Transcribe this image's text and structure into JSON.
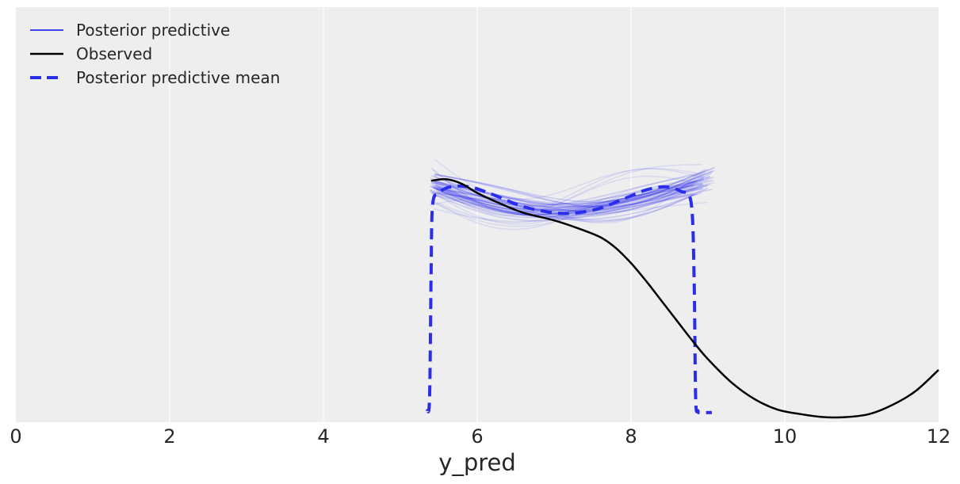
{
  "chart_data": {
    "type": "line",
    "title": "",
    "xlabel": "y_pred",
    "ylabel": "",
    "xlim": [
      0,
      12
    ],
    "ylim": [
      0,
      1
    ],
    "grid": true,
    "legend_position": "upper left",
    "x_ticks": [
      "0",
      "2",
      "4",
      "6",
      "8",
      "10",
      "12"
    ],
    "background_color": "#eeeeee",
    "legend": [
      {
        "label": "Posterior predictive",
        "color": "#2a2eec",
        "style": "solid-thin"
      },
      {
        "label": "Observed",
        "color": "#000000",
        "style": "solid"
      },
      {
        "label": "Posterior predictive mean",
        "color": "#2a2eec",
        "style": "dashed"
      }
    ],
    "series": [
      {
        "name": "Observed",
        "color": "#000000",
        "x": [
          5.4,
          5.6,
          5.8,
          6.0,
          6.3,
          6.6,
          7.0,
          7.3,
          7.6,
          7.8,
          8.0,
          8.2,
          8.4,
          8.6,
          8.8,
          9.0,
          9.3,
          9.6,
          9.9,
          10.2,
          10.5,
          10.8,
          11.1,
          11.4,
          11.7,
          12.0
        ],
        "y": [
          0.81,
          0.815,
          0.8,
          0.77,
          0.735,
          0.705,
          0.68,
          0.655,
          0.625,
          0.59,
          0.54,
          0.48,
          0.415,
          0.35,
          0.285,
          0.225,
          0.15,
          0.095,
          0.06,
          0.045,
          0.035,
          0.035,
          0.045,
          0.075,
          0.12,
          0.19
        ]
      },
      {
        "name": "Posterior predictive mean",
        "color": "#2a2eec",
        "x": [
          5.35,
          5.38,
          5.4,
          5.42,
          5.5,
          5.65,
          5.9,
          6.2,
          6.6,
          7.0,
          7.3,
          7.6,
          7.9,
          8.2,
          8.45,
          8.65,
          8.78,
          8.82,
          8.84,
          8.87,
          8.9,
          9.05
        ],
        "y": [
          0.055,
          0.1,
          0.5,
          0.73,
          0.77,
          0.79,
          0.79,
          0.765,
          0.725,
          0.705,
          0.705,
          0.72,
          0.75,
          0.78,
          0.79,
          0.775,
          0.74,
          0.5,
          0.1,
          0.055,
          0.05,
          0.05
        ]
      }
    ],
    "posterior_samples_band": {
      "name": "Posterior predictive",
      "color": "#2a2eec",
      "opacity": 0.15,
      "x_range": [
        5.35,
        9.05
      ],
      "y_range_approx": [
        0.64,
        0.95
      ],
      "sample_count_approx": 50
    }
  }
}
